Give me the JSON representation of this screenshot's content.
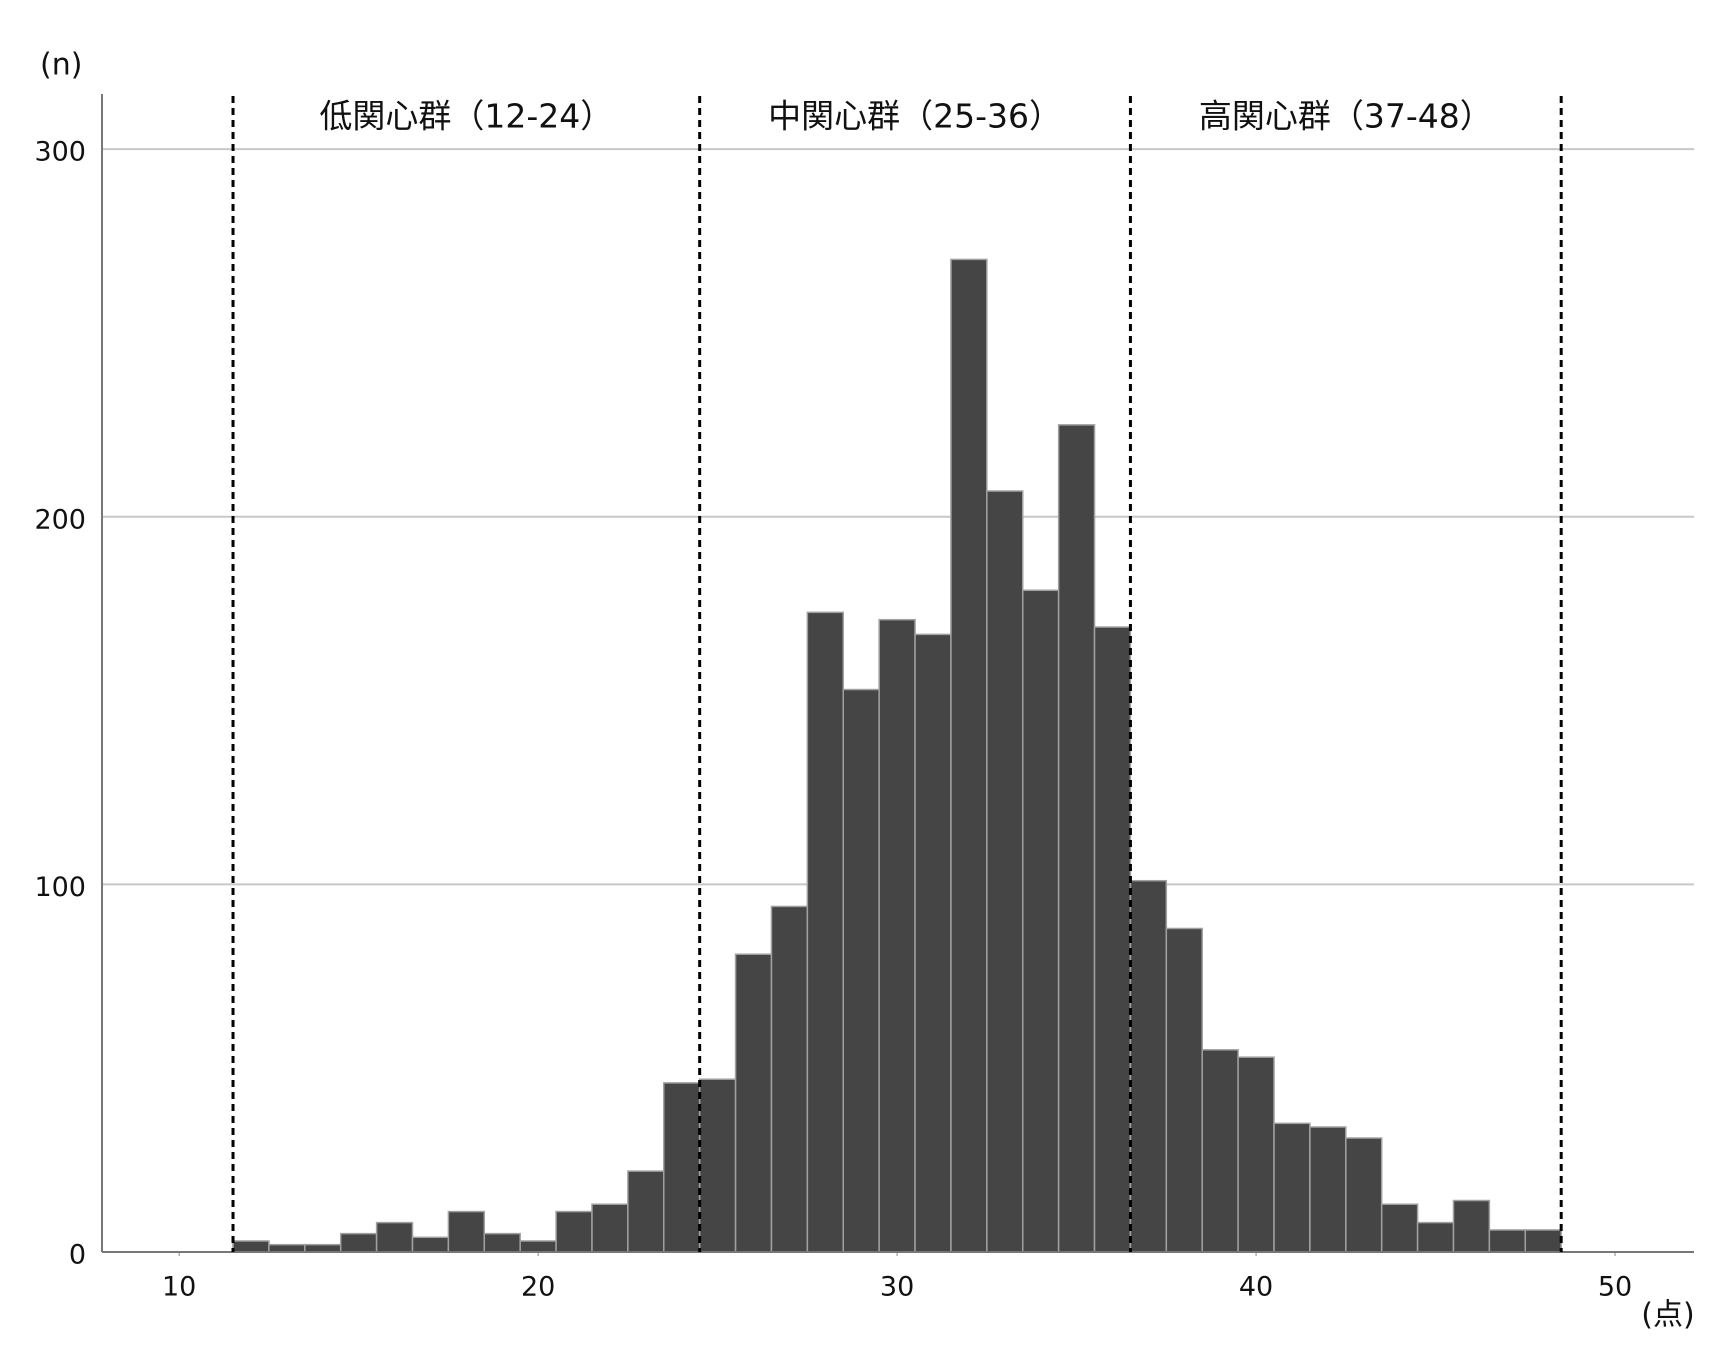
{
  "chart_data": {
    "type": "histogram",
    "y_label": "(n)",
    "x_label": "(点)",
    "bins": [
      11.5,
      12.5,
      13.5,
      14.5,
      15.5,
      16.5,
      17.5,
      18.5,
      19.5,
      20.5,
      21.5,
      22.5,
      23.5,
      24.5,
      25.5,
      26.5,
      27.5,
      28.5,
      29.5,
      30.5,
      31.5,
      32.5,
      33.5,
      34.5,
      35.5,
      36.5,
      37.5,
      38.5,
      39.5,
      40.5,
      41.5,
      42.5,
      43.5,
      44.5,
      45.5,
      46.5,
      47.5,
      48.5
    ],
    "values": [
      3,
      2,
      2,
      5,
      8,
      4,
      11,
      5,
      3,
      11,
      13,
      22,
      46,
      47,
      81,
      94,
      174,
      153,
      172,
      168,
      270,
      207,
      180,
      225,
      170,
      101,
      88,
      55,
      53,
      35,
      34,
      31,
      13,
      8,
      14,
      6,
      6
    ],
    "color": "#454545",
    "xlim": [
      7.85,
      52.2
    ],
    "ylim": [
      0,
      315
    ],
    "xticks": [
      10,
      20,
      30,
      40,
      50
    ],
    "yticks": [
      0,
      100,
      200,
      300
    ],
    "grid": true,
    "cutoffs": [
      11.5,
      24.5,
      36.5,
      48.5
    ],
    "group_labels": [
      "低関心群（12-24）",
      "中関心群（25-36）",
      "高関心群（37-48）"
    ]
  }
}
